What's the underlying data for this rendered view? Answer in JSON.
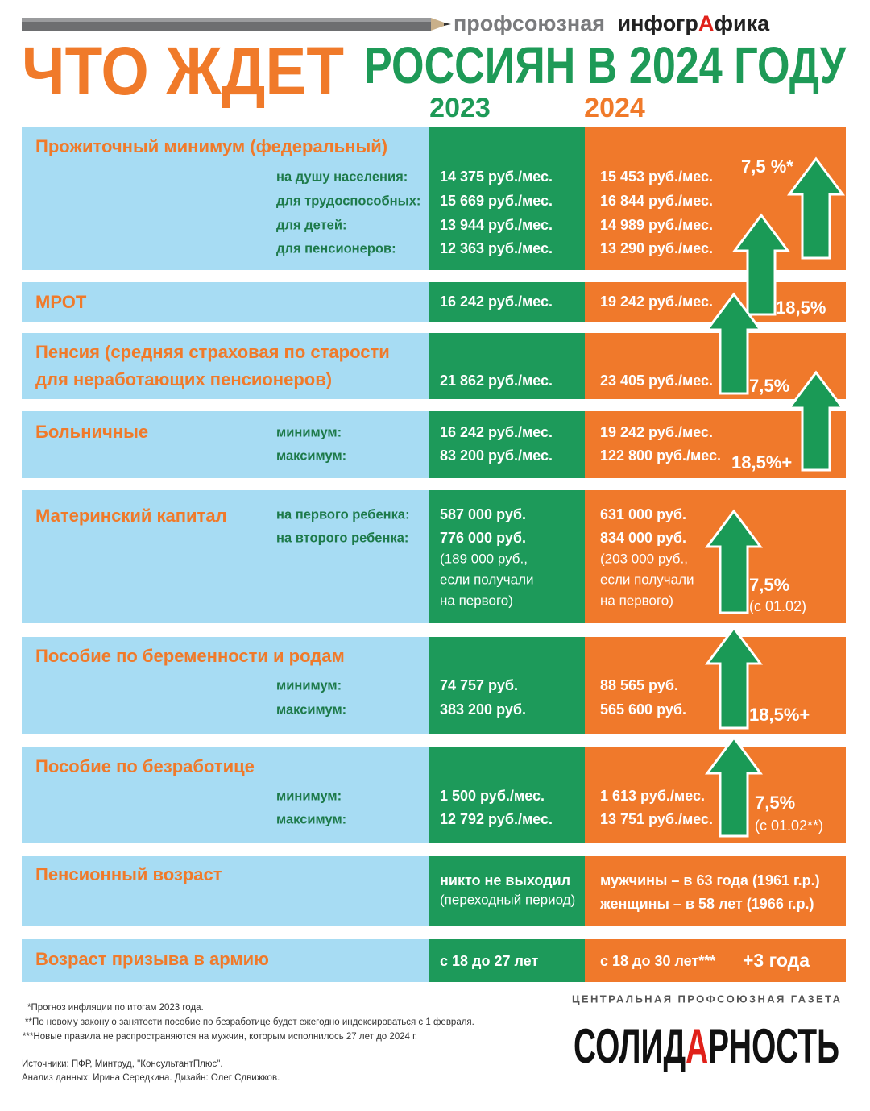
{
  "header": {
    "brand_light": "профсоюзная",
    "brand_bold_1": "инфогр",
    "brand_red": "А",
    "brand_bold_2": "фика",
    "title_orange": "ЧТО ЖДЕТ",
    "title_green": "РОССИЯН В 2024 ГОДУ",
    "col_2023": "2023",
    "col_2024": "2024"
  },
  "rows": [
    {
      "label": [
        "Прожиточный минимум (федеральный)"
      ],
      "subs": [
        "на душу населения:",
        "для трудоспособных:",
        "для детей:",
        "для пенсионеров:"
      ],
      "y2023": [
        "14 375 руб./мес.",
        "15 669 руб./мес.",
        "13 944 руб./мес.",
        "12 363 руб./мес."
      ],
      "y2024": [
        "15 453 руб./мес.",
        "16 844 руб./мес.",
        "14 989 руб./мес.",
        "13 290 руб./мес."
      ],
      "change": [
        "7,5 %*"
      ]
    },
    {
      "label": [
        "МРОТ"
      ],
      "subs": [],
      "y2023": [
        "16 242 руб./мес."
      ],
      "y2024": [
        "19 242 руб./мес."
      ],
      "change": [
        "18,5%"
      ]
    },
    {
      "label": [
        "Пенсия (средняя страховая по старости",
        "для неработающих пенсионеров)"
      ],
      "subs": [],
      "y2023": [
        "21 862 руб./мес."
      ],
      "y2024": [
        "23 405 руб./мес."
      ],
      "change": [
        "7,5%"
      ]
    },
    {
      "label": [
        "Больничные"
      ],
      "subs": [
        "минимум:",
        "максимум:"
      ],
      "y2023": [
        "16 242 руб./мес.",
        "83 200 руб./мес."
      ],
      "y2024": [
        "19 242 руб./мес.",
        "122 800 руб./мес."
      ],
      "change": [
        "18,5%+"
      ]
    },
    {
      "label": [
        "Материнский капитал"
      ],
      "subs": [
        "на первого ребенка:",
        "на второго ребенка:"
      ],
      "y2023": [
        "587 000 руб.",
        "776 000 руб.",
        "(189 000 руб.,",
        "если получали",
        "на первого)"
      ],
      "y2024": [
        "631 000 руб.",
        "834 000 руб.",
        "(203 000 руб.,",
        "если получали",
        "на первого)"
      ],
      "change": [
        "7,5%",
        "(с 01.02)"
      ]
    },
    {
      "label": [
        "Пособие по беременности и родам"
      ],
      "subs": [
        "минимум:",
        "максимум:"
      ],
      "y2023": [
        "74 757 руб.",
        "383 200 руб."
      ],
      "y2024": [
        "88 565 руб.",
        "565 600 руб."
      ],
      "change": [
        "18,5%+"
      ]
    },
    {
      "label": [
        "Пособие по безработице"
      ],
      "subs": [
        "минимум:",
        "максимум:"
      ],
      "y2023": [
        "1 500 руб./мес.",
        "12 792 руб./мес."
      ],
      "y2024": [
        "1 613 руб./мес.",
        "13 751 руб./мес."
      ],
      "change": [
        "7,5%",
        "(с 01.02**)"
      ]
    },
    {
      "label": [
        "Пенсионный возраст"
      ],
      "subs": [],
      "y2023": [
        "никто не выходил",
        "(переходный период)"
      ],
      "y2024": [
        "мужчины – в 63 года (1961 г.р.)",
        "женщины – в 58 лет (1966 г.р.)"
      ],
      "change": []
    },
    {
      "label": [
        "Возраст призыва в армию"
      ],
      "subs": [],
      "y2023": [
        "с 18 до 27 лет"
      ],
      "y2024": [
        "с 18 до 30 лет***"
      ],
      "change": [
        "+3 года"
      ]
    }
  ],
  "footnotes": [
    "*Прогноз инфляции по итогам 2023 года.",
    "**По новому закону о занятости пособие по безработице будет ежегодно индексироваться с 1 февраля.",
    "***Новые правила не распространяются на мужчин, которым исполнилось 27 лет до 2024 г."
  ],
  "sources": [
    "Источники: ПФР, Минтруд, \"КонсультантПлюс\".",
    "Анализ данных: Ирина Середкина. Дизайн: Олег Сдвижков."
  ],
  "publisher": {
    "tagline": "ЦЕНТРАЛЬНАЯ ПРОФСОЮЗНАЯ ГАЗЕТА",
    "name_1": "СОЛИД",
    "name_red": "А",
    "name_2": "РНОСТЬ"
  }
}
